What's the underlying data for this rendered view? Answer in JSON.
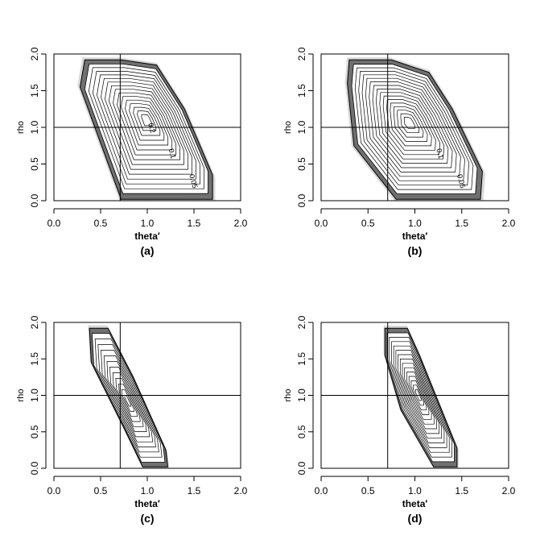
{
  "chart_data": [
    {
      "type": "contour",
      "caption": "(a)",
      "xlabel": "theta′",
      "ylabel": "rho",
      "xlim": [
        0,
        2
      ],
      "ylim": [
        0,
        2
      ],
      "xticks": [
        "0.0",
        "0.5",
        "1.0",
        "1.5",
        "2.0"
      ],
      "yticks": [
        "0.0",
        "0.5",
        "1.0",
        "1.5",
        "2.0"
      ],
      "ref_lines": {
        "vertical_x": 0.71,
        "horizontal_y": 1.0
      },
      "region": [
        [
          0.33,
          1.92
        ],
        [
          0.72,
          1.92
        ],
        [
          1.1,
          1.85
        ],
        [
          1.4,
          1.25
        ],
        [
          1.7,
          0.35
        ],
        [
          1.7,
          0.02
        ],
        [
          0.72,
          0.02
        ],
        [
          0.28,
          1.55
        ]
      ],
      "contour_levels": 14,
      "contour_labels": [
        "0.05",
        "0.1",
        "0.2"
      ]
    },
    {
      "type": "contour",
      "caption": "(b)",
      "xlabel": "theta′",
      "ylabel": "rho",
      "xlim": [
        0,
        2
      ],
      "ylim": [
        0,
        2
      ],
      "xticks": [
        "0.0",
        "0.5",
        "1.0",
        "1.5",
        "2.0"
      ],
      "yticks": [
        "0.0",
        "0.5",
        "1.0",
        "1.5",
        "2.0"
      ],
      "ref_lines": {
        "vertical_x": 0.71,
        "horizontal_y": 1.0
      },
      "region": [
        [
          0.3,
          1.92
        ],
        [
          0.75,
          1.92
        ],
        [
          1.15,
          1.75
        ],
        [
          1.4,
          1.25
        ],
        [
          1.72,
          0.4
        ],
        [
          1.7,
          0.02
        ],
        [
          0.8,
          0.02
        ],
        [
          0.35,
          0.75
        ],
        [
          0.28,
          1.6
        ]
      ],
      "contour_levels": 15,
      "contour_labels": [
        "0.05",
        "0.1"
      ]
    },
    {
      "type": "contour",
      "caption": "(c)",
      "xlabel": "theta′",
      "ylabel": "rho",
      "xlim": [
        0,
        2
      ],
      "ylim": [
        0,
        2
      ],
      "xticks": [
        "0.0",
        "0.5",
        "1.0",
        "1.5",
        "2.0"
      ],
      "yticks": [
        "0.0",
        "0.5",
        "1.0",
        "1.5",
        "2.0"
      ],
      "ref_lines": {
        "vertical_x": 0.71,
        "horizontal_y": 1.0
      },
      "region": [
        [
          0.38,
          1.92
        ],
        [
          0.58,
          1.92
        ],
        [
          0.85,
          1.25
        ],
        [
          1.2,
          0.25
        ],
        [
          1.22,
          0.02
        ],
        [
          0.95,
          0.02
        ],
        [
          0.75,
          0.55
        ],
        [
          0.4,
          1.45
        ]
      ],
      "contour_levels": 11,
      "contour_labels": []
    },
    {
      "type": "contour",
      "caption": "(d)",
      "xlabel": "theta′",
      "ylabel": "rho",
      "xlim": [
        0,
        2
      ],
      "ylim": [
        0,
        2
      ],
      "xticks": [
        "0.0",
        "0.5",
        "1.0",
        "1.5",
        "2.0"
      ],
      "yticks": [
        "0.0",
        "0.5",
        "1.0",
        "1.5",
        "2.0"
      ],
      "ref_lines": {
        "vertical_x": 0.71,
        "horizontal_y": 1.0
      },
      "region": [
        [
          0.68,
          1.92
        ],
        [
          0.92,
          1.92
        ],
        [
          1.05,
          1.55
        ],
        [
          1.45,
          0.28
        ],
        [
          1.45,
          0.02
        ],
        [
          1.2,
          0.02
        ],
        [
          0.85,
          0.8
        ],
        [
          0.68,
          1.55
        ]
      ],
      "contour_levels": 13,
      "contour_labels": []
    }
  ]
}
